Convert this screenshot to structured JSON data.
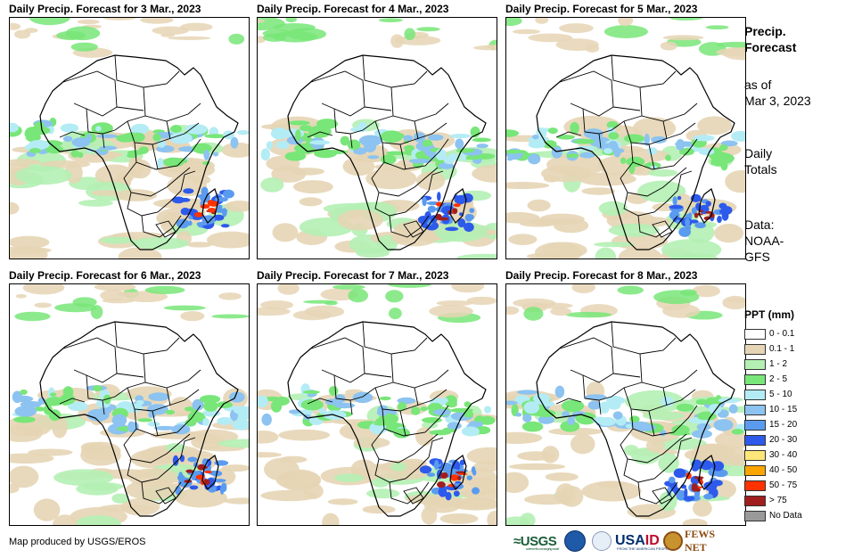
{
  "panels": [
    {
      "title": "Daily Precip. Forecast for 3 Mar., 2023"
    },
    {
      "title": "Daily Precip. Forecast for 4 Mar., 2023"
    },
    {
      "title": "Daily Precip. Forecast for 5 Mar., 2023"
    },
    {
      "title": "Daily Precip. Forecast for 6 Mar., 2023"
    },
    {
      "title": "Daily Precip. Forecast for 7 Mar., 2023"
    },
    {
      "title": "Daily Precip. Forecast for 8 Mar., 2023"
    }
  ],
  "sidebar": {
    "title_line1": "Precip.",
    "title_line2": "Forecast",
    "asof_line1": "as of",
    "asof_line2": "Mar 3, 2023",
    "totals_line1": "Daily",
    "totals_line2": "Totals",
    "data_line1": "Data:",
    "data_line2": "NOAA-",
    "data_line3": "GFS"
  },
  "legend": {
    "title": "PPT (mm)",
    "items": [
      {
        "label": "0 - 0.1",
        "color": "#ffffff"
      },
      {
        "label": "0.1 - 1",
        "color": "#e6d5b5"
      },
      {
        "label": "1 - 2",
        "color": "#b4f0b4"
      },
      {
        "label": "2 - 5",
        "color": "#78e678"
      },
      {
        "label": "5 - 10",
        "color": "#b4ecf5"
      },
      {
        "label": "10 - 15",
        "color": "#8cc3f0"
      },
      {
        "label": "15 - 20",
        "color": "#5a9bf0"
      },
      {
        "label": "20 - 30",
        "color": "#2d5aeb"
      },
      {
        "label": "30 - 40",
        "color": "#ffe678"
      },
      {
        "label": "40 - 50",
        "color": "#ffa500"
      },
      {
        "label": "50 - 75",
        "color": "#ff3200"
      },
      {
        "label": "> 75",
        "color": "#a01e1e"
      },
      {
        "label": "No Data",
        "color": "#999999"
      }
    ]
  },
  "footer": {
    "credit": "Map produced by USGS/EROS"
  },
  "logos": {
    "usgs": "≈USGS",
    "usgs_tagline": "science for a changing world",
    "usaid_a": "USA",
    "usaid_b": "ID",
    "usaid_tagline": "FROM THE AMERICAN PEOPLE",
    "fews": "FEWS NET"
  }
}
